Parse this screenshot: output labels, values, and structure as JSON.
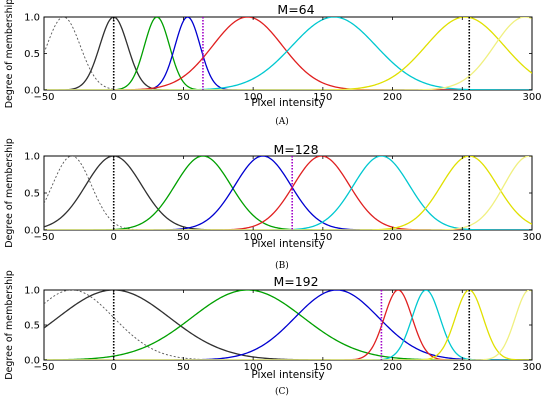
{
  "chart_data": [
    {
      "type": "line",
      "caption": "(A)",
      "title": "M=64",
      "xlabel": "Pixel intensity",
      "ylabel": "Degree of membership",
      "xlim": [
        -50,
        300
      ],
      "ylim": [
        0,
        1.0
      ],
      "xticks": [
        -50,
        0,
        50,
        100,
        150,
        200,
        250,
        300
      ],
      "yticks": [
        0.0,
        0.5,
        1.0
      ],
      "vlines": [
        {
          "x": 0,
          "color": "#000000"
        },
        {
          "x": 64,
          "color": "#a000c8"
        },
        {
          "x": 255,
          "color": "#000000"
        }
      ],
      "series": [
        {
          "color": "#555555",
          "dashed": true,
          "center": -36,
          "sigma": 12
        },
        {
          "color": "#303030",
          "dashed": false,
          "center": 0,
          "sigma": 10
        },
        {
          "color": "#00a000",
          "dashed": false,
          "center": 31,
          "sigma": 9
        },
        {
          "color": "#0000d0",
          "dashed": false,
          "center": 53,
          "sigma": 9
        },
        {
          "color": "#e02020",
          "dashed": false,
          "center": 96,
          "sigma": 25
        },
        {
          "color": "#00c8d0",
          "dashed": false,
          "center": 158,
          "sigma": 30
        },
        {
          "color": "#e0e000",
          "dashed": false,
          "center": 252,
          "sigma": 28
        },
        {
          "color": "#f0f080",
          "dashed": false,
          "center": 295,
          "sigma": 22
        }
      ]
    },
    {
      "type": "line",
      "caption": "(B)",
      "title": "M=128",
      "xlabel": "Pixel intensity",
      "ylabel": "Degree of membership",
      "xlim": [
        -50,
        300
      ],
      "ylim": [
        0,
        1.0
      ],
      "xticks": [
        -50,
        0,
        50,
        100,
        150,
        200,
        250,
        300
      ],
      "yticks": [
        0.0,
        0.5,
        1.0
      ],
      "vlines": [
        {
          "x": 0,
          "color": "#000000"
        },
        {
          "x": 128,
          "color": "#a000c8"
        },
        {
          "x": 255,
          "color": "#000000"
        }
      ],
      "series": [
        {
          "color": "#555555",
          "dashed": true,
          "center": -30,
          "sigma": 14
        },
        {
          "color": "#303030",
          "dashed": false,
          "center": 0,
          "sigma": 20
        },
        {
          "color": "#00a000",
          "dashed": false,
          "center": 64,
          "sigma": 20
        },
        {
          "color": "#0000d0",
          "dashed": false,
          "center": 107,
          "sigma": 20
        },
        {
          "color": "#e02020",
          "dashed": false,
          "center": 149,
          "sigma": 20
        },
        {
          "color": "#00c8d0",
          "dashed": false,
          "center": 192,
          "sigma": 20
        },
        {
          "color": "#e0e000",
          "dashed": false,
          "center": 255,
          "sigma": 20
        },
        {
          "color": "#f0f080",
          "dashed": false,
          "center": 298,
          "sigma": 18
        }
      ]
    },
    {
      "type": "line",
      "caption": "(C)",
      "title": "M=192",
      "xlabel": "Pixel intensity",
      "ylabel": "Degree of membership",
      "xlim": [
        -50,
        300
      ],
      "ylim": [
        0,
        1.0
      ],
      "xticks": [
        -50,
        0,
        50,
        100,
        150,
        200,
        250,
        300
      ],
      "yticks": [
        0.0,
        0.5,
        1.0
      ],
      "vlines": [
        {
          "x": 0,
          "color": "#000000"
        },
        {
          "x": 192,
          "color": "#a000c8"
        },
        {
          "x": 255,
          "color": "#000000"
        }
      ],
      "series": [
        {
          "color": "#555555",
          "dashed": true,
          "center": -30,
          "sigma": 30
        },
        {
          "color": "#303030",
          "dashed": false,
          "center": 0,
          "sigma": 40
        },
        {
          "color": "#00a000",
          "dashed": false,
          "center": 96,
          "sigma": 40
        },
        {
          "color": "#0000d0",
          "dashed": false,
          "center": 160,
          "sigma": 30
        },
        {
          "color": "#e02020",
          "dashed": false,
          "center": 204,
          "sigma": 10
        },
        {
          "color": "#00c8d0",
          "dashed": false,
          "center": 224,
          "sigma": 10
        },
        {
          "color": "#e0e000",
          "dashed": false,
          "center": 255,
          "sigma": 10
        },
        {
          "color": "#f0f080",
          "dashed": false,
          "center": 298,
          "sigma": 10
        }
      ]
    }
  ]
}
